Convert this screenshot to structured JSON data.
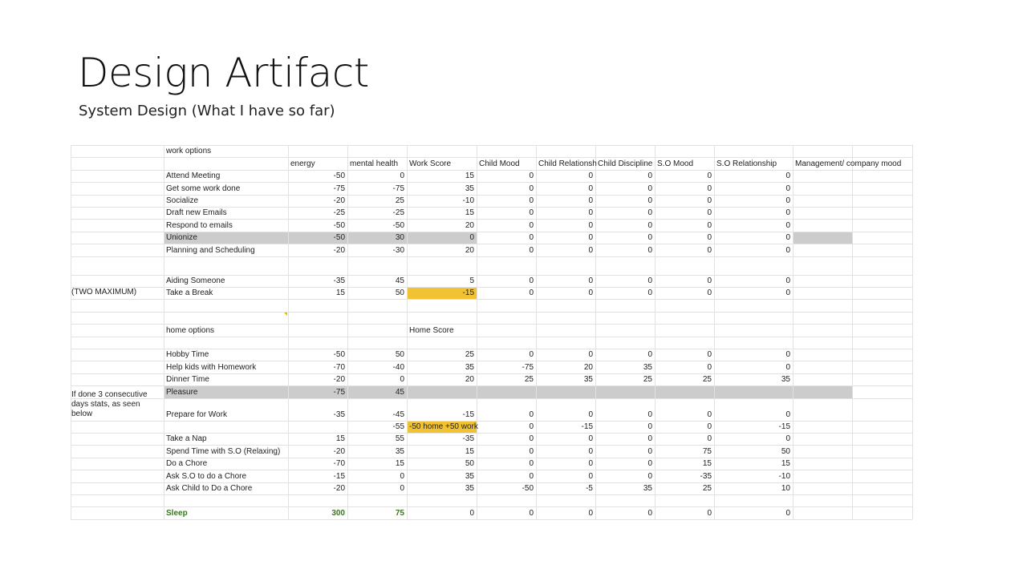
{
  "header": {
    "title": "Design Artifact",
    "subtitle": "System Design (What I have so far)"
  },
  "table": {
    "rows": [
      {
        "option": "work options"
      },
      {
        "columns": [
          "energy",
          "mental health",
          "Work Score",
          "Child Mood",
          "Child Relationsh",
          "Child Discipline",
          "S.O Mood",
          "S.O  Relationship",
          "Management/ company mood"
        ]
      },
      {
        "option": "Attend Meeting",
        "stats": [
          -50,
          0,
          15,
          0,
          0,
          0,
          0,
          0
        ]
      },
      {
        "option": "Get some work done",
        "stats": [
          -75,
          -75,
          35,
          0,
          0,
          0,
          0,
          0
        ]
      },
      {
        "option": "Socialize",
        "stats": [
          -20,
          25,
          -10,
          0,
          0,
          0,
          0,
          0
        ]
      },
      {
        "option": "Draft new Emails",
        "stats": [
          -25,
          -25,
          15,
          0,
          0,
          0,
          0,
          0
        ]
      },
      {
        "option": "Respond to emails",
        "stats": [
          -50,
          -50,
          20,
          0,
          0,
          0,
          0,
          0
        ]
      },
      {
        "option": "Unionize",
        "stats": [
          -50,
          30,
          0,
          0,
          0,
          0,
          0,
          0
        ]
      },
      {
        "option": "Planning and Scheduling",
        "stats": [
          -20,
          -30,
          20,
          0,
          0,
          0,
          0,
          0
        ]
      },
      {},
      {
        "option": "Aiding Someone",
        "stats": [
          -35,
          45,
          5,
          0,
          0,
          0,
          0,
          0
        ]
      },
      {
        "note": "(TWO MAXIMUM)",
        "option": "Take a Break",
        "stats": [
          15,
          50,
          -15,
          0,
          0,
          0,
          0,
          0
        ]
      },
      {},
      {},
      {
        "option": "home options",
        "stats": [
          null,
          null,
          "Home Score"
        ]
      },
      {},
      {
        "option": "Hobby Time",
        "stats": [
          -50,
          50,
          25,
          0,
          0,
          0,
          0,
          0
        ]
      },
      {
        "option": "Help kids with Homework",
        "stats": [
          -70,
          -40,
          35,
          -75,
          20,
          35,
          0,
          0
        ]
      },
      {
        "option": "Dinner Time",
        "stats": [
          -20,
          0,
          20,
          25,
          35,
          25,
          25,
          35
        ]
      },
      {
        "option": "Pleasure",
        "stats": [
          -75,
          45
        ]
      },
      {
        "note": "If done 3 consecutive days stats, as seen below",
        "option": "Prepare for Work",
        "stats": [
          -35,
          -45,
          -15,
          0,
          0,
          0,
          0,
          0
        ]
      },
      {
        "stats": [
          null,
          -55,
          "-50 home +50 work",
          0,
          -15,
          0,
          0,
          -15
        ]
      },
      {
        "option": "Take a Nap",
        "stats": [
          15,
          55,
          -35,
          0,
          0,
          0,
          0,
          0
        ]
      },
      {
        "option": "Spend Time with S.O (Relaxing)",
        "stats": [
          -20,
          35,
          15,
          0,
          0,
          0,
          75,
          50
        ]
      },
      {
        "option": "Do a Chore",
        "stats": [
          -70,
          15,
          50,
          0,
          0,
          0,
          15,
          15
        ]
      },
      {
        "option": "Ask S.O to do a Chore",
        "stats": [
          -15,
          0,
          35,
          0,
          0,
          0,
          -35,
          -10
        ]
      },
      {
        "option": "Ask Child to Do a Chore",
        "stats": [
          -20,
          0,
          35,
          -50,
          -5,
          35,
          25,
          10
        ]
      },
      {},
      {
        "option": "Sleep",
        "stats": [
          300,
          75,
          0,
          0,
          0,
          0,
          0,
          0
        ]
      }
    ]
  }
}
